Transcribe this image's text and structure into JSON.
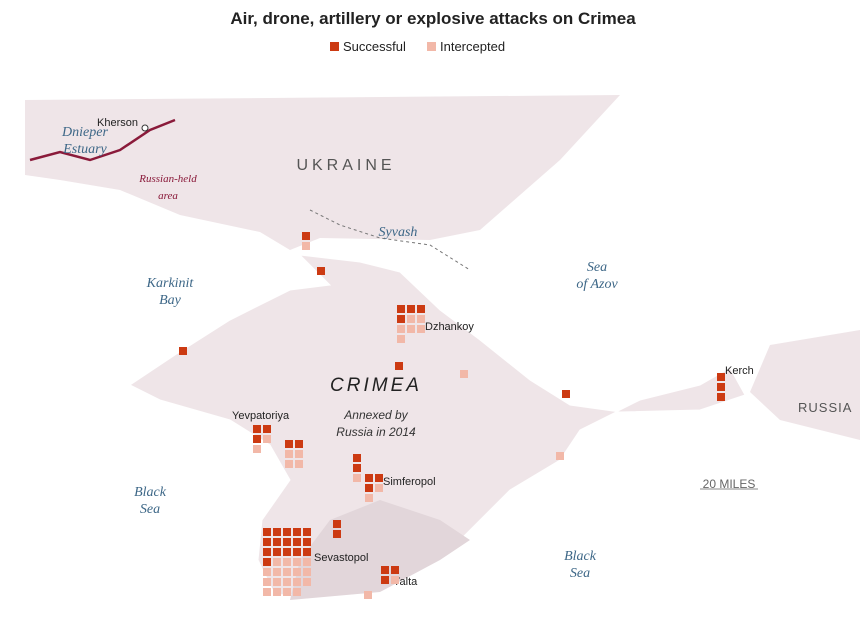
{
  "title": "Air, drone, artillery or explosive attacks on Crimea",
  "legend": [
    {
      "name": "Successful",
      "color": "#cc3a12"
    },
    {
      "name": "Intercepted",
      "color": "#f2b8a8"
    }
  ],
  "labels": {
    "kherson": "Kherson",
    "dnieper": [
      "Dnieper",
      "Estuary"
    ],
    "russian_held": [
      "Russian-held",
      "area"
    ],
    "ukraine": "UKRAINE",
    "syvash": "Syvash",
    "azov": [
      "Sea",
      "of Azov"
    ],
    "karkinit": [
      "Karkinit",
      "Bay"
    ],
    "crimea": "CRIMEA",
    "annexed": [
      "Annexed by",
      "Russia in 2014"
    ],
    "dzhankoy": "Dzhankoy",
    "yevpatoriya": "Yevpatoriya",
    "simferopol": "Simferopol",
    "sevastopol": "Sevastopol",
    "yalta": "Yalta",
    "kerch": "Kerch",
    "russia": "RUSSIA",
    "black_sea_west": [
      "Black",
      "Sea"
    ],
    "black_sea_south": [
      "Black",
      "Sea"
    ],
    "scale": "20 MILES"
  },
  "clusters": [
    {
      "successful": 1,
      "intercepted": 1
    },
    {
      "successful": 1,
      "intercepted": 0
    },
    {
      "successful": 1,
      "intercepted": 0
    },
    {
      "successful": 4,
      "intercepted": 6
    },
    {
      "successful": 1,
      "intercepted": 0
    },
    {
      "successful": 0,
      "intercepted": 1
    },
    {
      "successful": 1,
      "intercepted": 0
    },
    {
      "successful": 3,
      "intercepted": 0
    },
    {
      "successful": 3,
      "intercepted": 2
    },
    {
      "successful": 2,
      "intercepted": 4
    },
    {
      "successful": 2,
      "intercepted": 1
    },
    {
      "successful": 3,
      "intercepted": 2
    },
    {
      "successful": 2,
      "intercepted": 0
    },
    {
      "successful": 16,
      "intercepted": 18
    },
    {
      "successful": 3,
      "intercepted": 1
    },
    {
      "successful": 0,
      "intercepted": 1
    },
    {
      "successful": 0,
      "intercepted": 1
    }
  ]
}
